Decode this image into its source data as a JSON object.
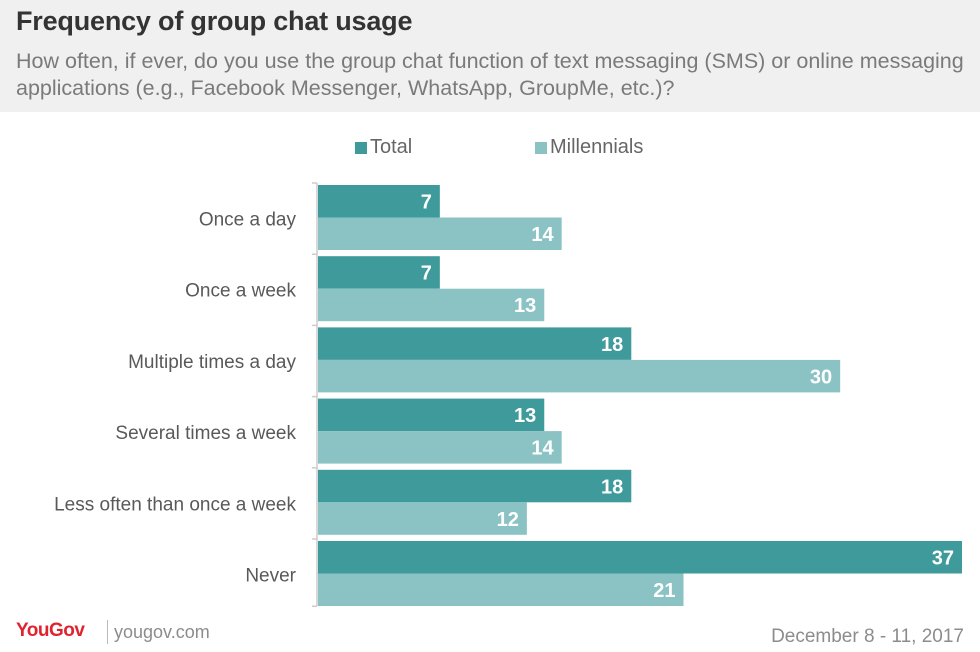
{
  "header": {
    "title": "Frequency of group chat usage",
    "subtitle": "How often, if ever, do you use the group chat function of text messaging (SMS) or online messaging applications (e.g., Facebook Messenger, WhatsApp, GroupMe, etc.)?"
  },
  "legend": {
    "total": "Total",
    "millennials": "Millennials"
  },
  "colors": {
    "total": "#3f9a9b",
    "millennials": "#8bc3c5",
    "header_bg": "#f0f0f0",
    "brand": "#e0242f"
  },
  "chart_data": {
    "type": "bar",
    "orientation": "horizontal",
    "title": "Frequency of group chat usage",
    "categories": [
      "Once a day",
      "Once a week",
      "Multiple times a day",
      "Several times a week",
      "Less often than once a week",
      "Never"
    ],
    "series": [
      {
        "name": "Total",
        "values": [
          7,
          7,
          18,
          13,
          18,
          37
        ]
      },
      {
        "name": "Millennials",
        "values": [
          14,
          13,
          30,
          14,
          12,
          21
        ]
      }
    ],
    "xlim": [
      0,
      37
    ],
    "grid": false,
    "legend_position": "top"
  },
  "footer": {
    "brand": "YouGov",
    "url": "yougov.com",
    "date": "December 8 - 11, 2017"
  }
}
